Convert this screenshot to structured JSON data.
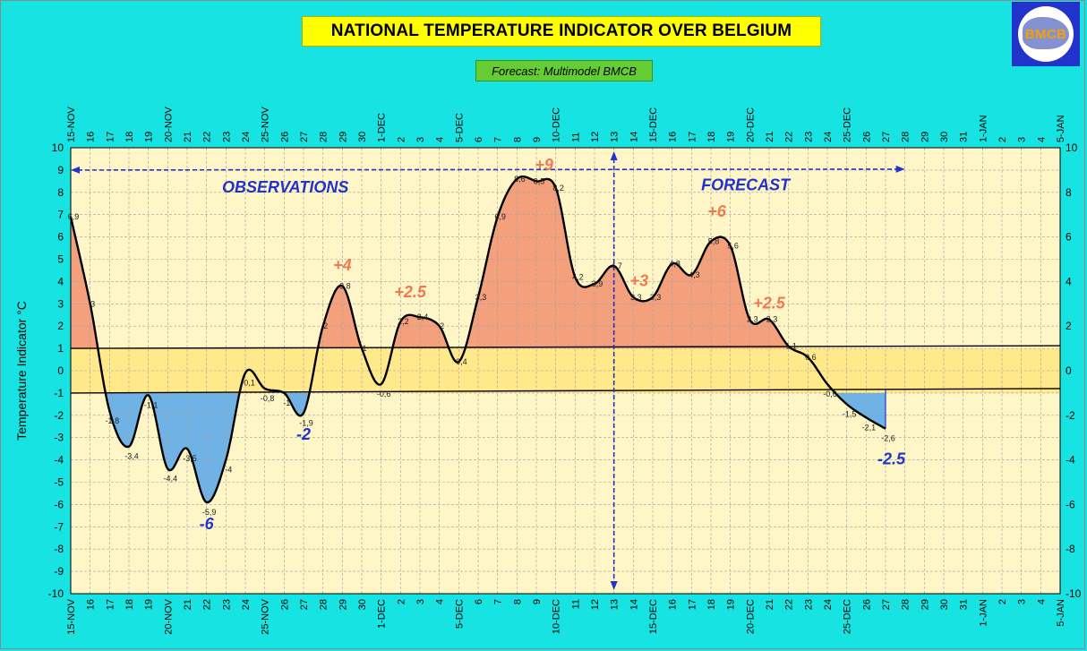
{
  "header": {
    "title": "NATIONAL TEMPERATURE INDICATOR OVER  BELGIUM",
    "subtitle": "Forecast:  Multimodel BMCB",
    "logo_text": "BMCB"
  },
  "colors": {
    "background": "#17e3e3",
    "plot_bg": "#fff6c8",
    "positive_fill": "#f4a07c",
    "negative_fill": "#6fb3e6",
    "neutral_band": "#ffe98a",
    "line": "#000000",
    "annotation_orange": "#f07a50",
    "annotation_blue": "#2233cc"
  },
  "chart_data": {
    "type": "area",
    "title": "NATIONAL TEMPERATURE INDICATOR OVER  BELGIUM",
    "ylabel": "Temperature Indicator  °C",
    "ylim": [
      -10,
      10
    ],
    "y_ticks_left": [
      "10",
      "9",
      "8",
      "7",
      "6",
      "5",
      "4",
      "3",
      "2",
      "1",
      "0",
      "-1",
      "-2",
      "-3",
      "-4",
      "-5",
      "-6",
      "-7",
      "-8",
      "-9",
      "-10"
    ],
    "y_ticks_right": [
      "10",
      "8",
      "6",
      "4",
      "2",
      "0",
      "-2",
      "-4",
      "-6",
      "-8",
      "-10"
    ],
    "x_tick_labels": [
      "15-NOV",
      "16",
      "17",
      "18",
      "19",
      "20-NOV",
      "21",
      "22",
      "23",
      "24",
      "25-NOV",
      "26",
      "27",
      "28",
      "29",
      "30",
      "1-DEC",
      "2",
      "3",
      "4",
      "5-DEC",
      "6",
      "7",
      "8",
      "9",
      "10-DEC",
      "11",
      "12",
      "13",
      "14",
      "15-DEC",
      "16",
      "17",
      "18",
      "19",
      "20-DEC",
      "21",
      "22",
      "23",
      "24",
      "25-DEC",
      "26",
      "27",
      "28",
      "29",
      "30",
      "31",
      "1-JAN",
      "2",
      "3",
      "4",
      "5-JAN"
    ],
    "neutral_band": [
      -1,
      1
    ],
    "series": [
      {
        "name": "Temperature indicator",
        "x": [
          0,
          1,
          2,
          3,
          4,
          5,
          6,
          7,
          8,
          9,
          10,
          11,
          12,
          13,
          14,
          15,
          16,
          17,
          18,
          19,
          20,
          21,
          22,
          23,
          24,
          25,
          26,
          27,
          28,
          29,
          30,
          31,
          32,
          33,
          34,
          35,
          36,
          37,
          38,
          39,
          40,
          41,
          42
        ],
        "values": [
          6.9,
          3,
          -1.8,
          -3.4,
          -1.1,
          -4.4,
          -3.5,
          -5.9,
          -4,
          -0.1,
          -0.8,
          -1,
          -1.9,
          2,
          3.8,
          1,
          -0.6,
          2.2,
          2.4,
          2,
          0.4,
          3.3,
          6.9,
          8.6,
          8.5,
          8.2,
          4.2,
          3.9,
          4.7,
          3.3,
          3.3,
          4.8,
          4.3,
          5.8,
          5.6,
          2.3,
          2.3,
          1.1,
          0.6,
          -0.6,
          -1.5,
          -2.1,
          -2.6
        ],
        "labels": [
          "6,9",
          "3",
          "-1,8",
          "-3,4",
          "-1,1",
          "-4,4",
          "-3,5",
          "-5,9",
          "-4",
          "-0,1",
          "-0,8",
          "-1",
          "-1,9",
          "2",
          "3,8",
          "1",
          "-0,6",
          "2,2",
          "2,4",
          "2",
          "0,4",
          "3,3",
          "6,9",
          "8,6",
          "8,5",
          "8,2",
          "4,2",
          "3,9",
          "4,7",
          "3,3",
          "3,3",
          "4,8",
          "4,3",
          "5,8",
          "5,6",
          "2,3",
          "2,3",
          "1,1",
          "0,6",
          "-0,6",
          "-1,5",
          "-2,1",
          "-2,6"
        ]
      }
    ],
    "regions": {
      "observations": "OBSERVATIONS",
      "forecast": "FORECAST",
      "divider_x": 28
    },
    "annotations": [
      {
        "text": "-6",
        "x": 7,
        "y": -7.1,
        "color": "blue"
      },
      {
        "text": "-2",
        "x": 12,
        "y": -3.1,
        "color": "blue"
      },
      {
        "text": "+4",
        "x": 14,
        "y": 4.5,
        "color": "orange"
      },
      {
        "text": "+2.5",
        "x": 17.5,
        "y": 3.3,
        "color": "orange"
      },
      {
        "text": "+9",
        "x": 24.4,
        "y": 9.0,
        "color": "orange"
      },
      {
        "text": "+3",
        "x": 29.3,
        "y": 3.8,
        "color": "orange"
      },
      {
        "text": "+6",
        "x": 33.3,
        "y": 6.9,
        "color": "orange"
      },
      {
        "text": "+2.5",
        "x": 36,
        "y": 2.8,
        "color": "orange"
      },
      {
        "text": "-2.5",
        "x": 42.3,
        "y": -4.2,
        "color": "blue"
      }
    ]
  }
}
